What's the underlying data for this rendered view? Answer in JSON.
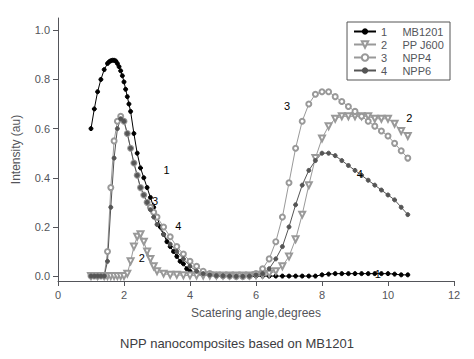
{
  "chart_data": {
    "type": "line",
    "title": "NPP nanocomposites based on MB1201",
    "xlabel": "Scatering angle,degrees",
    "ylabel": "Intensity (au)",
    "xlim": [
      0,
      12
    ],
    "ylim": [
      -0.02,
      1.05
    ],
    "xticks": [
      0,
      2,
      4,
      6,
      8,
      10,
      12
    ],
    "yticks": [
      {
        "value": 0.0,
        "label": "0.0"
      },
      0.2,
      0.4,
      0.6,
      0.8,
      {
        "value": 1.0,
        "label": "1.0"
      }
    ],
    "grid": false,
    "legend": "upper right",
    "line_style": "solid",
    "series": [
      {
        "name": "1     MB1201",
        "color": "#000000",
        "marker": "circle",
        "x": [
          1.0,
          1.1,
          1.2,
          1.3,
          1.4,
          1.5,
          1.55,
          1.6,
          1.65,
          1.7,
          1.75,
          1.8,
          1.85,
          1.9,
          1.95,
          2.0,
          2.05,
          2.1,
          2.15,
          2.2,
          2.3,
          2.4,
          2.5,
          2.6,
          2.7,
          2.8,
          2.9,
          3.0,
          3.1,
          3.2,
          3.3,
          3.4,
          3.5,
          3.6,
          3.7,
          3.8,
          3.9,
          4.0,
          4.2,
          4.4,
          4.6,
          4.8,
          5.0,
          5.2,
          5.4,
          5.6,
          5.8,
          6.0,
          6.2,
          6.4,
          6.6,
          6.8,
          7.0,
          7.2,
          7.4,
          7.6,
          7.8,
          8.0,
          8.2,
          8.4,
          8.6,
          8.8,
          9.0,
          9.2,
          9.4,
          9.6,
          9.8,
          10.0,
          10.2,
          10.4,
          10.6
        ],
        "values": [
          0.6,
          0.68,
          0.75,
          0.8,
          0.84,
          0.865,
          0.872,
          0.876,
          0.878,
          0.878,
          0.875,
          0.865,
          0.852,
          0.835,
          0.815,
          0.79,
          0.76,
          0.73,
          0.7,
          0.67,
          0.58,
          0.5,
          0.44,
          0.4,
          0.36,
          0.32,
          0.28,
          0.24,
          0.2,
          0.17,
          0.14,
          0.12,
          0.1,
          0.08,
          0.06,
          0.05,
          0.03,
          0.02,
          0.01,
          0.005,
          0.002,
          0.0,
          -0.002,
          -0.002,
          -0.002,
          -0.002,
          -0.002,
          0.0,
          0.0,
          0.0,
          0.0,
          0.0,
          0.0,
          0.0,
          0.0,
          0.0,
          0.0,
          0.005,
          0.008,
          0.01,
          0.01,
          0.01,
          0.01,
          0.01,
          0.01,
          0.01,
          0.01,
          0.01,
          0.008,
          0.005,
          0.005
        ]
      },
      {
        "name": "2     PP J600",
        "color": "#999999",
        "marker": "open_triangle_down",
        "x": [
          1.0,
          1.2,
          1.4,
          1.5,
          1.6,
          1.7,
          1.8,
          1.9,
          2.0,
          2.1,
          2.2,
          2.3,
          2.4,
          2.5,
          2.6,
          2.7,
          2.8,
          2.9,
          3.0,
          3.2,
          3.4,
          3.6,
          3.8,
          4.0,
          4.2,
          4.4,
          4.6,
          4.8,
          5.0,
          5.2,
          5.4,
          5.6,
          5.8,
          6.0,
          6.2,
          6.4,
          6.6,
          6.8,
          7.0,
          7.2,
          7.4,
          7.6,
          7.8,
          8.0,
          8.2,
          8.4,
          8.6,
          8.8,
          9.0,
          9.2,
          9.4,
          9.6,
          9.8,
          10.0,
          10.2,
          10.4,
          10.6
        ],
        "values": [
          0.0,
          0.0,
          0.0,
          0.0,
          0.0,
          0.0,
          0.0,
          0.0,
          0.0,
          0.01,
          0.06,
          0.12,
          0.16,
          0.17,
          0.14,
          0.1,
          0.07,
          0.04,
          0.02,
          0.01,
          0.005,
          0.005,
          0.003,
          0.002,
          0.002,
          0.002,
          0.002,
          0.002,
          0.002,
          0.002,
          0.002,
          0.002,
          0.002,
          0.003,
          0.005,
          0.01,
          0.02,
          0.04,
          0.08,
          0.15,
          0.25,
          0.37,
          0.48,
          0.56,
          0.61,
          0.64,
          0.65,
          0.65,
          0.65,
          0.65,
          0.65,
          0.64,
          0.64,
          0.64,
          0.62,
          0.59,
          0.57
        ]
      },
      {
        "name": "3     NPP4",
        "color": "#999999",
        "marker": "open_circle",
        "x": [
          1.0,
          1.1,
          1.2,
          1.3,
          1.4,
          1.5,
          1.6,
          1.7,
          1.8,
          1.9,
          2.0,
          2.1,
          2.2,
          2.3,
          2.4,
          2.5,
          2.6,
          2.7,
          2.8,
          2.9,
          3.0,
          3.2,
          3.4,
          3.6,
          3.8,
          4.0,
          4.2,
          4.4,
          4.6,
          4.8,
          5.0,
          5.2,
          5.4,
          5.6,
          5.8,
          6.0,
          6.2,
          6.4,
          6.6,
          6.8,
          7.0,
          7.2,
          7.4,
          7.6,
          7.8,
          8.0,
          8.2,
          8.4,
          8.6,
          8.8,
          9.0,
          9.2,
          9.4,
          9.6,
          9.8,
          10.0,
          10.2,
          10.4,
          10.6
        ],
        "values": [
          0.0,
          0.0,
          0.0,
          0.0,
          0.0,
          0.1,
          0.36,
          0.55,
          0.63,
          0.65,
          0.63,
          0.58,
          0.52,
          0.46,
          0.41,
          0.36,
          0.33,
          0.3,
          0.28,
          0.26,
          0.24,
          0.2,
          0.16,
          0.12,
          0.09,
          0.06,
          0.04,
          0.02,
          0.01,
          0.004,
          0.001,
          0.0,
          -0.002,
          -0.002,
          0.0,
          0.01,
          0.03,
          0.07,
          0.14,
          0.24,
          0.38,
          0.52,
          0.63,
          0.7,
          0.74,
          0.75,
          0.75,
          0.73,
          0.71,
          0.69,
          0.67,
          0.65,
          0.63,
          0.61,
          0.59,
          0.57,
          0.54,
          0.51,
          0.48
        ]
      },
      {
        "name": "4     NPP6",
        "color": "#555555",
        "marker": "circle",
        "x": [
          1.0,
          1.1,
          1.2,
          1.3,
          1.4,
          1.5,
          1.6,
          1.7,
          1.8,
          1.9,
          2.0,
          2.1,
          2.2,
          2.3,
          2.4,
          2.5,
          2.6,
          2.7,
          2.8,
          2.9,
          3.0,
          3.2,
          3.4,
          3.6,
          3.8,
          4.0,
          4.2,
          4.4,
          4.6,
          4.8,
          5.0,
          5.2,
          5.4,
          5.6,
          5.8,
          6.0,
          6.2,
          6.4,
          6.6,
          6.8,
          7.0,
          7.2,
          7.4,
          7.6,
          7.8,
          8.0,
          8.2,
          8.4,
          8.6,
          8.8,
          9.0,
          9.2,
          9.4,
          9.6,
          9.8,
          10.0,
          10.2,
          10.4,
          10.6
        ],
        "values": [
          0.0,
          0.0,
          0.0,
          0.0,
          0.0,
          0.06,
          0.28,
          0.48,
          0.6,
          0.64,
          0.63,
          0.58,
          0.52,
          0.46,
          0.41,
          0.36,
          0.33,
          0.3,
          0.27,
          0.24,
          0.21,
          0.17,
          0.13,
          0.1,
          0.07,
          0.04,
          0.02,
          0.01,
          0.005,
          0.002,
          0.001,
          0.0,
          -0.001,
          -0.001,
          0.0,
          0.005,
          0.01,
          0.03,
          0.07,
          0.12,
          0.2,
          0.29,
          0.37,
          0.43,
          0.47,
          0.5,
          0.5,
          0.49,
          0.47,
          0.45,
          0.43,
          0.41,
          0.39,
          0.37,
          0.35,
          0.33,
          0.31,
          0.28,
          0.25
        ]
      }
    ],
    "annotations": [
      {
        "text": "1",
        "x": 3.2,
        "y": 0.43
      },
      {
        "text": "2",
        "x": 2.45,
        "y": 0.075
      },
      {
        "text": "3",
        "x": 2.85,
        "y": 0.305
      },
      {
        "text": "4",
        "x": 3.55,
        "y": 0.205
      },
      {
        "text": "1",
        "x": 9.6,
        "y": 0.01
      },
      {
        "text": "2",
        "x": 10.55,
        "y": 0.645
      },
      {
        "text": "3",
        "x": 6.85,
        "y": 0.69
      },
      {
        "text": "4",
        "x": 9.05,
        "y": 0.415
      }
    ]
  }
}
